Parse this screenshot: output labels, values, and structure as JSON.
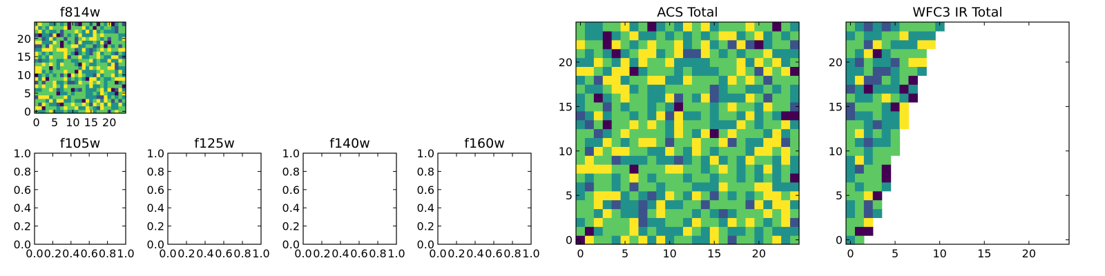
{
  "colormap": [
    "#440154",
    "#3b528b",
    "#21918c",
    "#5ec962",
    "#fde725"
  ],
  "chart_data": [
    {
      "id": "f814w",
      "type": "heatmap",
      "title": "f814w",
      "grid_size": [
        25,
        25
      ],
      "xlim": [
        -0.5,
        24.5
      ],
      "ylim": [
        -0.5,
        24.5
      ],
      "xticks": [
        0,
        5,
        10,
        15,
        20
      ],
      "yticks": [
        0,
        5,
        10,
        15,
        20
      ],
      "pattern": "noise",
      "seed": 814
    },
    {
      "id": "f105w",
      "type": "heatmap",
      "title": "f105w",
      "empty": true,
      "xlim": [
        0,
        1
      ],
      "ylim": [
        0,
        1
      ],
      "xticks": [
        "0.0",
        "0.2",
        "0.4",
        "0.6",
        "0.8",
        "1.0"
      ],
      "yticks": [
        "0.0",
        "0.2",
        "0.4",
        "0.6",
        "0.8",
        "1.0"
      ]
    },
    {
      "id": "f125w",
      "type": "heatmap",
      "title": "f125w",
      "empty": true,
      "xlim": [
        0,
        1
      ],
      "ylim": [
        0,
        1
      ],
      "xticks": [
        "0.0",
        "0.2",
        "0.4",
        "0.6",
        "0.8",
        "1.0"
      ],
      "yticks": [
        "0.0",
        "0.2",
        "0.4",
        "0.6",
        "0.8",
        "1.0"
      ]
    },
    {
      "id": "f140w",
      "type": "heatmap",
      "title": "f140w",
      "empty": true,
      "xlim": [
        0,
        1
      ],
      "ylim": [
        0,
        1
      ],
      "xticks": [
        "0.0",
        "0.2",
        "0.4",
        "0.6",
        "0.8",
        "1.0"
      ],
      "yticks": [
        "0.0",
        "0.2",
        "0.4",
        "0.6",
        "0.8",
        "1.0"
      ]
    },
    {
      "id": "f160w",
      "type": "heatmap",
      "title": "f160w",
      "empty": true,
      "xlim": [
        0,
        1
      ],
      "ylim": [
        0,
        1
      ],
      "xticks": [
        "0.0",
        "0.2",
        "0.4",
        "0.6",
        "0.8",
        "1.0"
      ],
      "yticks": [
        "0.0",
        "0.2",
        "0.4",
        "0.6",
        "0.8",
        "1.0"
      ]
    },
    {
      "id": "acs-total",
      "type": "heatmap",
      "title": "ACS Total",
      "grid_size": [
        25,
        25
      ],
      "xlim": [
        -0.5,
        24.5
      ],
      "ylim": [
        -0.5,
        24.5
      ],
      "xticks": [
        0,
        5,
        10,
        15,
        20
      ],
      "yticks": [
        0,
        5,
        10,
        15,
        20
      ],
      "pattern": "noise",
      "seed": 2024
    },
    {
      "id": "wfc3-ir-total",
      "type": "heatmap",
      "title": "WFC3 IR Total",
      "grid_size": [
        25,
        25
      ],
      "xlim": [
        -0.5,
        24.5
      ],
      "ylim": [
        -0.5,
        24.5
      ],
      "xticks": [
        0,
        5,
        10,
        15,
        20
      ],
      "yticks": [
        0,
        5,
        10,
        15,
        20
      ],
      "pattern": "triangle",
      "seed": 160,
      "filled_row_widths": [
        2,
        3,
        3,
        4,
        4,
        4,
        5,
        5,
        5,
        5,
        6,
        6,
        6,
        7,
        7,
        7,
        8,
        8,
        8,
        9,
        9,
        9,
        10,
        10,
        11
      ]
    }
  ]
}
